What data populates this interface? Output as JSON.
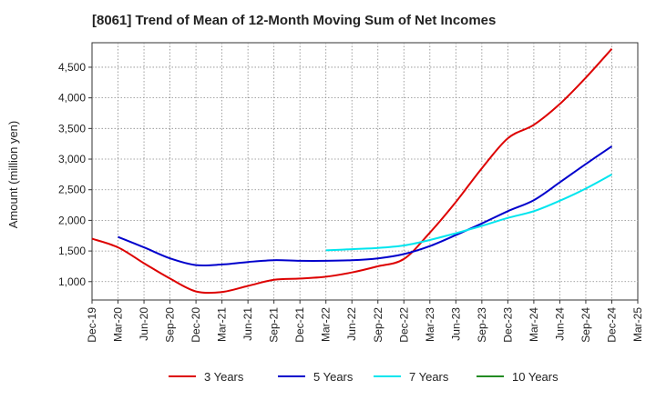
{
  "chart_data": {
    "type": "line",
    "title": "[8061]  Trend of Mean of 12-Month Moving Sum of Net Incomes",
    "ylabel": "Amount (million yen)",
    "xlabel": "",
    "ylim": [
      700,
      4900
    ],
    "yticks": [
      1000,
      1500,
      2000,
      2500,
      3000,
      3500,
      4000,
      4500
    ],
    "ytick_labels": [
      "1,000",
      "1,500",
      "2,000",
      "2,500",
      "3,000",
      "3,500",
      "4,000",
      "4,500"
    ],
    "x_categories": [
      "Dec-19",
      "Mar-20",
      "Jun-20",
      "Sep-20",
      "Dec-20",
      "Mar-21",
      "Jun-21",
      "Sep-21",
      "Dec-21",
      "Mar-22",
      "Jun-22",
      "Sep-22",
      "Dec-22",
      "Mar-23",
      "Jun-23",
      "Sep-23",
      "Dec-23",
      "Mar-24",
      "Jun-24",
      "Sep-24",
      "Dec-24",
      "Mar-25"
    ],
    "grid": true,
    "legend_position": "bottom",
    "series": [
      {
        "name": "3 Years",
        "color": "#dd0000",
        "points": [
          [
            "Dec-19",
            1700
          ],
          [
            "Mar-20",
            1560
          ],
          [
            "Jun-20",
            1300
          ],
          [
            "Sep-20",
            1050
          ],
          [
            "Dec-20",
            840
          ],
          [
            "Mar-21",
            830
          ],
          [
            "Jun-21",
            930
          ],
          [
            "Sep-21",
            1030
          ],
          [
            "Dec-21",
            1050
          ],
          [
            "Mar-22",
            1080
          ],
          [
            "Jun-22",
            1150
          ],
          [
            "Sep-22",
            1250
          ],
          [
            "Dec-22",
            1370
          ],
          [
            "Mar-23",
            1800
          ],
          [
            "Jun-23",
            2300
          ],
          [
            "Sep-23",
            2850
          ],
          [
            "Dec-23",
            3340
          ],
          [
            "Mar-24",
            3560
          ],
          [
            "Jun-24",
            3900
          ],
          [
            "Sep-24",
            4330
          ],
          [
            "Dec-24",
            4800
          ]
        ]
      },
      {
        "name": "5 Years",
        "color": "#0000cc",
        "points": [
          [
            "Mar-20",
            1730
          ],
          [
            "Jun-20",
            1560
          ],
          [
            "Sep-20",
            1380
          ],
          [
            "Dec-20",
            1270
          ],
          [
            "Mar-21",
            1280
          ],
          [
            "Jun-21",
            1320
          ],
          [
            "Sep-21",
            1350
          ],
          [
            "Dec-21",
            1340
          ],
          [
            "Mar-22",
            1340
          ],
          [
            "Jun-22",
            1350
          ],
          [
            "Sep-22",
            1380
          ],
          [
            "Dec-22",
            1450
          ],
          [
            "Mar-23",
            1580
          ],
          [
            "Jun-23",
            1760
          ],
          [
            "Sep-23",
            1950
          ],
          [
            "Dec-23",
            2150
          ],
          [
            "Mar-24",
            2330
          ],
          [
            "Jun-24",
            2620
          ],
          [
            "Sep-24",
            2920
          ],
          [
            "Dec-24",
            3210
          ]
        ]
      },
      {
        "name": "7 Years",
        "color": "#00e5ee",
        "points": [
          [
            "Mar-22",
            1510
          ],
          [
            "Jun-22",
            1530
          ],
          [
            "Sep-22",
            1550
          ],
          [
            "Dec-22",
            1590
          ],
          [
            "Mar-23",
            1680
          ],
          [
            "Jun-23",
            1790
          ],
          [
            "Sep-23",
            1910
          ],
          [
            "Dec-23",
            2040
          ],
          [
            "Mar-24",
            2150
          ],
          [
            "Jun-24",
            2320
          ],
          [
            "Sep-24",
            2520
          ],
          [
            "Dec-24",
            2750
          ]
        ]
      },
      {
        "name": "10 Years",
        "color": "#228b22",
        "points": []
      }
    ]
  }
}
